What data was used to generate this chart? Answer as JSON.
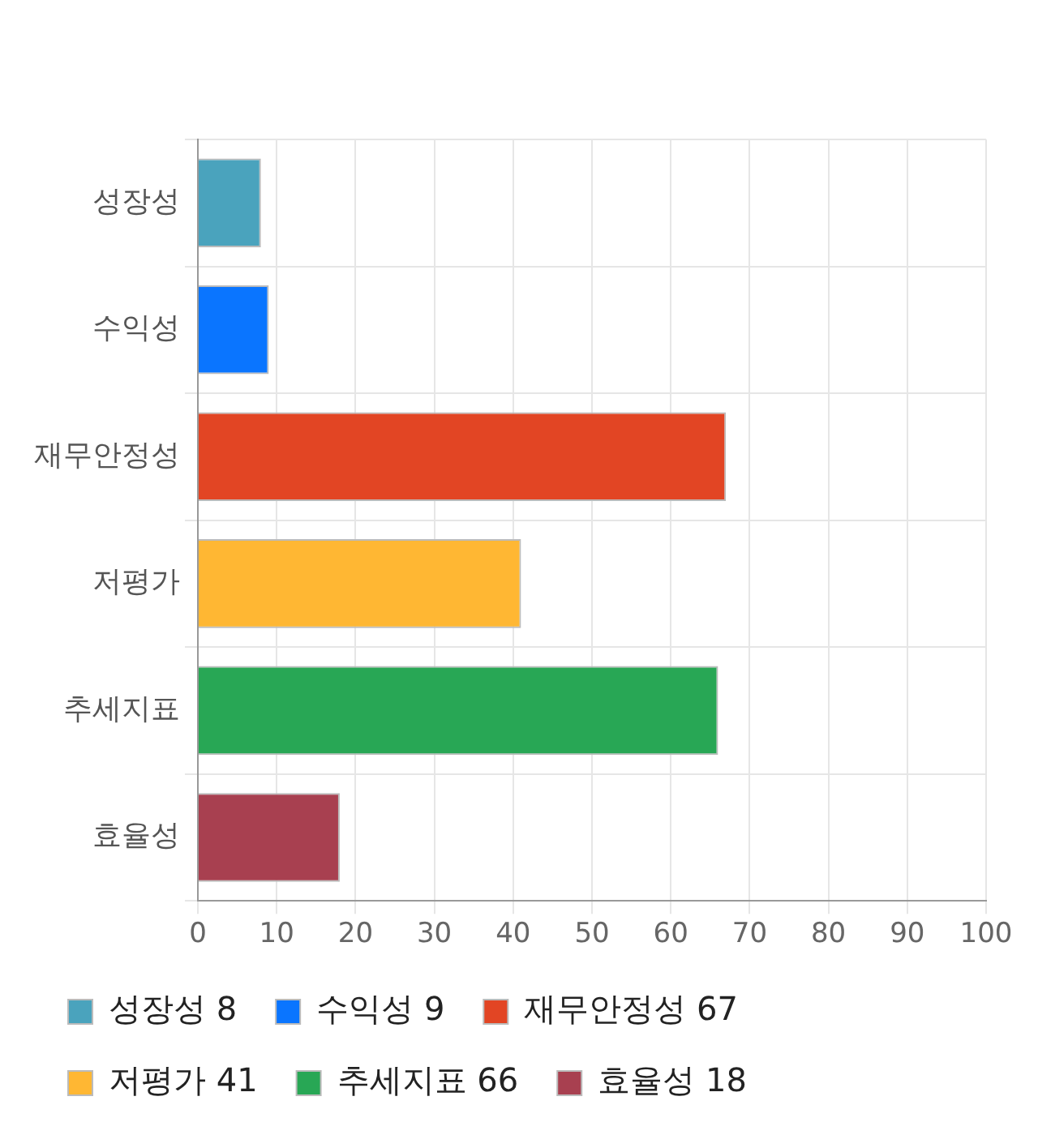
{
  "chart_data": {
    "type": "bar",
    "orientation": "horizontal",
    "stacked": true,
    "categories": [
      "성장성",
      "수익성",
      "재무안정성",
      "저평가",
      "추세지표",
      "효율성"
    ],
    "series": [
      {
        "name": "성장성 8",
        "color": "#4aa3bd",
        "values": [
          8,
          null,
          null,
          null,
          null,
          null
        ]
      },
      {
        "name": "수익성 9",
        "color": "#0a75ff",
        "values": [
          null,
          9,
          null,
          null,
          null,
          null
        ]
      },
      {
        "name": "재무안정성 67",
        "color": "#e24524",
        "values": [
          null,
          null,
          67,
          null,
          null,
          null
        ]
      },
      {
        "name": "저평가 41",
        "color": "#ffb733",
        "values": [
          null,
          null,
          null,
          41,
          null,
          null
        ]
      },
      {
        "name": "추세지표 66",
        "color": "#28a755",
        "values": [
          null,
          null,
          null,
          null,
          66,
          null
        ]
      },
      {
        "name": "효율성 18",
        "color": "#a84050",
        "values": [
          null,
          null,
          null,
          null,
          null,
          18
        ]
      }
    ],
    "xlim": [
      0,
      100
    ],
    "xticks": [
      0,
      10,
      20,
      30,
      40,
      50,
      60,
      70,
      80,
      90,
      100
    ],
    "grid": true,
    "legend": "bottom"
  }
}
